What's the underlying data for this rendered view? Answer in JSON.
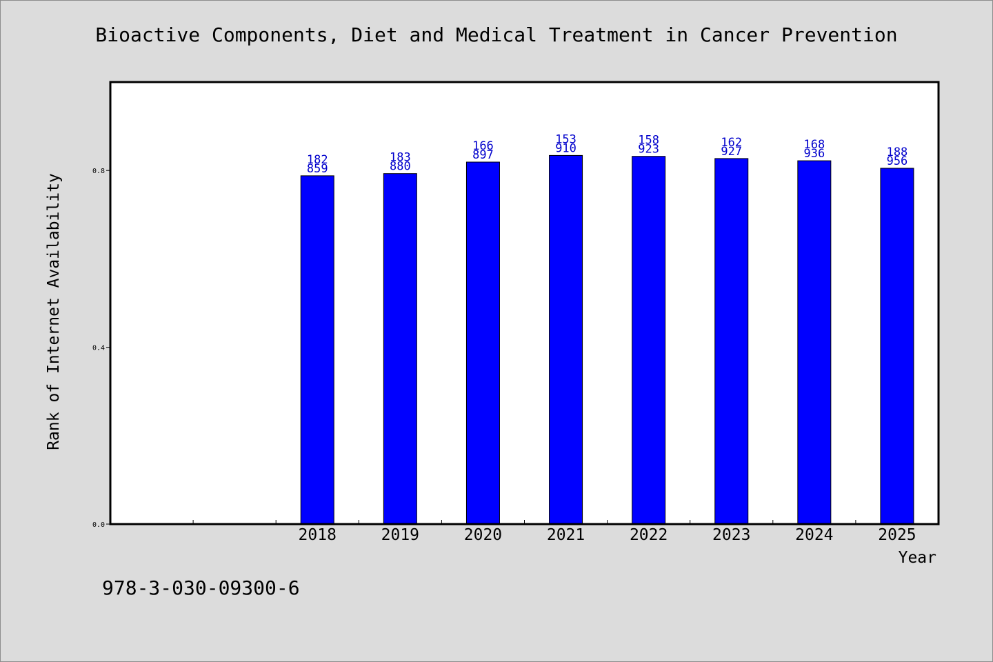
{
  "chart_data": {
    "type": "bar",
    "title": "Bioactive Components, Diet and Medical Treatment in Cancer Prevention",
    "xlabel": "Year",
    "ylabel": "Rank of Internet Availability",
    "categories": [
      "2018",
      "2019",
      "2020",
      "2021",
      "2022",
      "2023",
      "2024",
      "2025"
    ],
    "values": [
      0.788,
      0.793,
      0.819,
      0.834,
      0.832,
      0.827,
      0.822,
      0.805
    ],
    "bar_labels": [
      [
        "182",
        "859"
      ],
      [
        "183",
        "880"
      ],
      [
        "166",
        "897"
      ],
      [
        "153",
        "910"
      ],
      [
        "158",
        "923"
      ],
      [
        "162",
        "927"
      ],
      [
        "168",
        "936"
      ],
      [
        "188",
        "956"
      ]
    ],
    "yticks": [
      "0.0",
      "0.4",
      "0.8"
    ],
    "ytick_values": [
      0.0,
      0.4,
      0.8
    ],
    "ylim": [
      0.0,
      1.0
    ],
    "bar_color": "#0000ff",
    "label_color": "#0000cc",
    "grid": false,
    "legend": "none"
  },
  "footer": {
    "isbn": "978-3-030-09300-6"
  }
}
